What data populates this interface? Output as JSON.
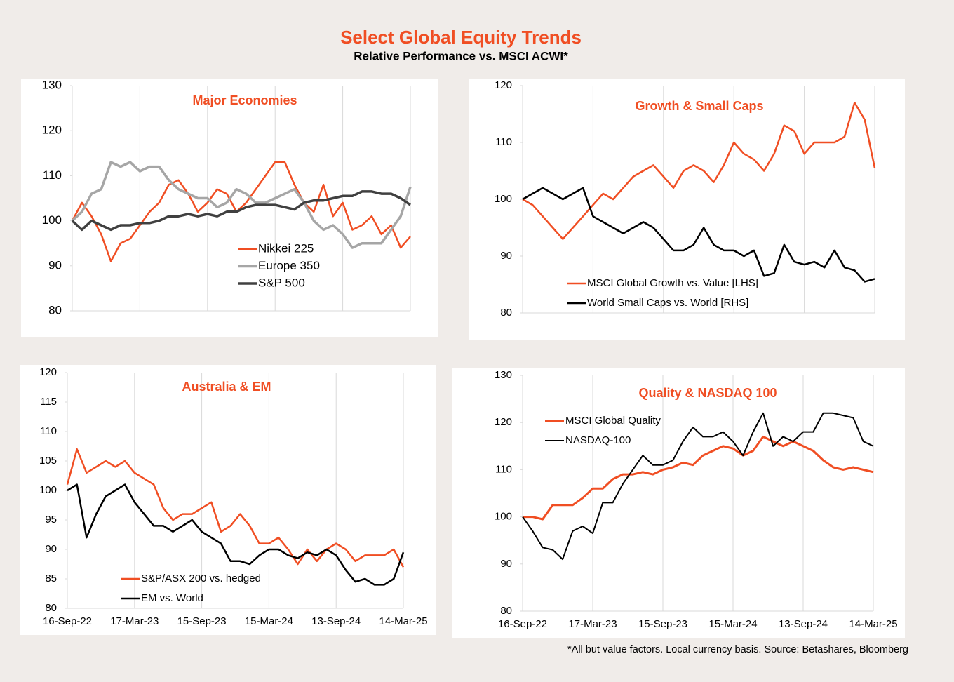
{
  "title": "Select Global Equity Trends",
  "subtitle": "Relative Performance vs. MSCI ACWI*",
  "footnote": "*All but value factors. Local currency basis.  Source: Betashares, Bloomberg",
  "chart_data": [
    {
      "type": "line",
      "title": "Major  Economies",
      "legend": "lower center",
      "x": [
        "2022-09-16",
        "2022-10-12",
        "2022-11-07",
        "2022-12-03",
        "2022-12-29",
        "2023-01-24",
        "2023-02-19",
        "2023-03-17",
        "2023-04-12",
        "2023-05-08",
        "2023-06-03",
        "2023-06-29",
        "2023-07-25",
        "2023-08-20",
        "2023-09-15",
        "2023-10-11",
        "2023-11-06",
        "2023-12-02",
        "2023-12-28",
        "2024-01-23",
        "2024-02-18",
        "2024-03-15",
        "2024-04-10",
        "2024-05-06",
        "2024-06-01",
        "2024-06-27",
        "2024-07-23",
        "2024-08-18",
        "2024-09-13",
        "2024-10-09",
        "2024-11-04",
        "2024-11-30",
        "2024-12-26",
        "2025-01-21",
        "2025-02-16",
        "2025-03-14"
      ],
      "xlim": [
        "2022-09-16",
        "2025-03-14"
      ],
      "xticks": [
        "2022-09-16",
        "2023-03-17",
        "2023-09-15",
        "2024-03-15",
        "2024-09-13",
        "2025-03-14"
      ],
      "ylim": [
        80,
        130
      ],
      "yticks": [
        80,
        90,
        100,
        110,
        120,
        130
      ],
      "series": [
        {
          "name": "Nikkei 225",
          "color": "#f04e23",
          "values": [
            100,
            104,
            101,
            97,
            91,
            95,
            96,
            99,
            102,
            104,
            108,
            109,
            106,
            102,
            104,
            107,
            106,
            102,
            104,
            107,
            110,
            113,
            113,
            108,
            104,
            102,
            108,
            101,
            104,
            98,
            99,
            101,
            97,
            99,
            94,
            96.5
          ]
        },
        {
          "name": "Europe 350",
          "color": "#a6a6a6",
          "values": [
            100,
            102,
            106,
            107,
            113,
            112,
            113,
            111,
            112,
            112,
            109,
            107,
            106,
            105,
            105,
            103,
            104,
            107,
            106,
            104,
            104,
            105,
            106,
            107,
            104,
            100,
            98,
            99,
            97,
            94,
            95,
            95,
            95,
            98,
            101,
            107.5
          ]
        },
        {
          "name": "S&P 500",
          "color": "#404040",
          "values": [
            100,
            98,
            100,
            99,
            98,
            99,
            99,
            99.5,
            99.5,
            100,
            101,
            101,
            101.5,
            101,
            101.5,
            101,
            102,
            102,
            103,
            103.5,
            103.5,
            103.5,
            103,
            102.5,
            104,
            104.5,
            104.5,
            105,
            105.5,
            105.5,
            106.5,
            106.5,
            106,
            106,
            105,
            103.5
          ]
        }
      ]
    },
    {
      "type": "line",
      "title": "Growth & Small Caps",
      "legend": "lower left",
      "x": [
        "2022-09-16",
        "2022-10-12",
        "2022-11-07",
        "2022-12-03",
        "2022-12-29",
        "2023-01-24",
        "2023-02-19",
        "2023-03-17",
        "2023-04-12",
        "2023-05-08",
        "2023-06-03",
        "2023-06-29",
        "2023-07-25",
        "2023-08-20",
        "2023-09-15",
        "2023-10-11",
        "2023-11-06",
        "2023-12-02",
        "2023-12-28",
        "2024-01-23",
        "2024-02-18",
        "2024-03-15",
        "2024-04-10",
        "2024-05-06",
        "2024-06-01",
        "2024-06-27",
        "2024-07-23",
        "2024-08-18",
        "2024-09-13",
        "2024-10-09",
        "2024-11-04",
        "2024-11-30",
        "2024-12-26",
        "2025-01-21",
        "2025-02-16",
        "2025-03-14"
      ],
      "xlim": [
        "2022-09-16",
        "2025-03-14"
      ],
      "xticks": [
        "2022-09-16",
        "2023-03-17",
        "2023-09-15",
        "2024-03-15",
        "2024-09-13",
        "2025-03-14"
      ],
      "ylim": [
        80,
        120
      ],
      "yticks": [
        80,
        90,
        100,
        110,
        120
      ],
      "series": [
        {
          "name": "MSCI Global Growth vs. Value [LHS]",
          "color": "#f04e23",
          "values": [
            100,
            99,
            97,
            95,
            93,
            95,
            97,
            99,
            101,
            100,
            102,
            104,
            105,
            106,
            104,
            102,
            105,
            106,
            105,
            103,
            106,
            110,
            108,
            107,
            105,
            108,
            113,
            112,
            108,
            110,
            110,
            110,
            111,
            117,
            114,
            105.5
          ]
        },
        {
          "name": "World Small Caps vs. World [RHS]",
          "color": "#000000",
          "values": [
            100,
            101,
            102,
            101,
            100,
            101,
            102,
            97,
            96,
            95,
            94,
            95,
            96,
            95,
            93,
            91,
            91,
            92,
            95,
            92,
            91,
            91,
            90,
            91,
            86.5,
            87,
            92,
            89,
            88.5,
            89,
            88,
            91,
            88,
            87.5,
            85.5,
            86
          ]
        }
      ]
    },
    {
      "type": "line",
      "title": "Australia & EM",
      "legend": "lower left",
      "x": [
        "2022-09-16",
        "2022-10-12",
        "2022-11-07",
        "2022-12-03",
        "2022-12-29",
        "2023-01-24",
        "2023-02-19",
        "2023-03-17",
        "2023-04-12",
        "2023-05-08",
        "2023-06-03",
        "2023-06-29",
        "2023-07-25",
        "2023-08-20",
        "2023-09-15",
        "2023-10-11",
        "2023-11-06",
        "2023-12-02",
        "2023-12-28",
        "2024-01-23",
        "2024-02-18",
        "2024-03-15",
        "2024-04-10",
        "2024-05-06",
        "2024-06-01",
        "2024-06-27",
        "2024-07-23",
        "2024-08-18",
        "2024-09-13",
        "2024-10-09",
        "2024-11-04",
        "2024-11-30",
        "2024-12-26",
        "2025-01-21",
        "2025-02-16",
        "2025-03-14"
      ],
      "xlim": [
        "2022-09-16",
        "2025-03-14"
      ],
      "xticks": [
        {
          "value": "2022-09-16",
          "label": "16-Sep-22"
        },
        {
          "value": "2023-03-17",
          "label": "17-Mar-23"
        },
        {
          "value": "2023-09-15",
          "label": "15-Sep-23"
        },
        {
          "value": "2024-03-15",
          "label": "15-Mar-24"
        },
        {
          "value": "2024-09-13",
          "label": "13-Sep-24"
        },
        {
          "value": "2025-03-14",
          "label": "14-Mar-25"
        }
      ],
      "ylim": [
        80,
        120
      ],
      "yticks": [
        80,
        85,
        90,
        95,
        100,
        105,
        110,
        115,
        120
      ],
      "series": [
        {
          "name": "S&P/ASX 200 vs. hedged",
          "color": "#f04e23",
          "values": [
            101,
            107,
            103,
            104,
            105,
            104,
            105,
            103,
            102,
            101,
            97,
            95,
            96,
            96,
            97,
            98,
            93,
            94,
            96,
            94,
            91,
            91,
            92,
            90,
            87.5,
            90,
            88,
            90,
            91,
            90,
            88,
            89,
            89,
            89,
            90,
            87
          ]
        },
        {
          "name": "EM vs. World",
          "color": "#000000",
          "values": [
            100,
            101,
            92,
            96,
            99,
            100,
            101,
            98,
            96,
            94,
            94,
            93,
            94,
            95,
            93,
            92,
            91,
            88,
            88,
            87.5,
            89,
            90,
            90,
            89,
            88.5,
            89.5,
            89,
            90,
            89,
            86.5,
            84.5,
            85,
            84,
            84,
            85,
            89.5
          ]
        }
      ]
    },
    {
      "type": "line",
      "title": "Quality & NASDAQ 100",
      "legend": "upper left",
      "x": [
        "2022-09-16",
        "2022-10-12",
        "2022-11-07",
        "2022-12-03",
        "2022-12-29",
        "2023-01-24",
        "2023-02-19",
        "2023-03-17",
        "2023-04-12",
        "2023-05-08",
        "2023-06-03",
        "2023-06-29",
        "2023-07-25",
        "2023-08-20",
        "2023-09-15",
        "2023-10-11",
        "2023-11-06",
        "2023-12-02",
        "2023-12-28",
        "2024-01-23",
        "2024-02-18",
        "2024-03-15",
        "2024-04-10",
        "2024-05-06",
        "2024-06-01",
        "2024-06-27",
        "2024-07-23",
        "2024-08-18",
        "2024-09-13",
        "2024-10-09",
        "2024-11-04",
        "2024-11-30",
        "2024-12-26",
        "2025-01-21",
        "2025-02-16",
        "2025-03-14"
      ],
      "xlim": [
        "2022-09-16",
        "2025-03-14"
      ],
      "xticks": [
        {
          "value": "2022-09-16",
          "label": "16-Sep-22"
        },
        {
          "value": "2023-03-17",
          "label": "17-Mar-23"
        },
        {
          "value": "2023-09-15",
          "label": "15-Sep-23"
        },
        {
          "value": "2024-03-15",
          "label": "15-Mar-24"
        },
        {
          "value": "2024-09-13",
          "label": "13-Sep-24"
        },
        {
          "value": "2025-03-14",
          "label": "14-Mar-25"
        }
      ],
      "ylim": [
        80,
        130
      ],
      "yticks": [
        80,
        90,
        100,
        110,
        120,
        130
      ],
      "series": [
        {
          "name": "MSCI Global Quality",
          "color": "#f04e23",
          "values": [
            100,
            100,
            99.5,
            102.5,
            102.5,
            102.5,
            104,
            106,
            106,
            108,
            109,
            109,
            109.5,
            109,
            110,
            110.5,
            111.5,
            111,
            113,
            114,
            115,
            114.5,
            113,
            114,
            117,
            116,
            115,
            116,
            115,
            114,
            112,
            110.5,
            110,
            110.5,
            110,
            109.5
          ]
        },
        {
          "name": "NASDAQ-100",
          "color": "#000000",
          "values": [
            100,
            97,
            93.5,
            93,
            91,
            97,
            98,
            96.5,
            103,
            103,
            107,
            110,
            113,
            111,
            111,
            112,
            116,
            119,
            117,
            117,
            118,
            116,
            113,
            118,
            122,
            115,
            117,
            116,
            118,
            118,
            122,
            122,
            121.5,
            121,
            116,
            115
          ]
        }
      ]
    }
  ]
}
